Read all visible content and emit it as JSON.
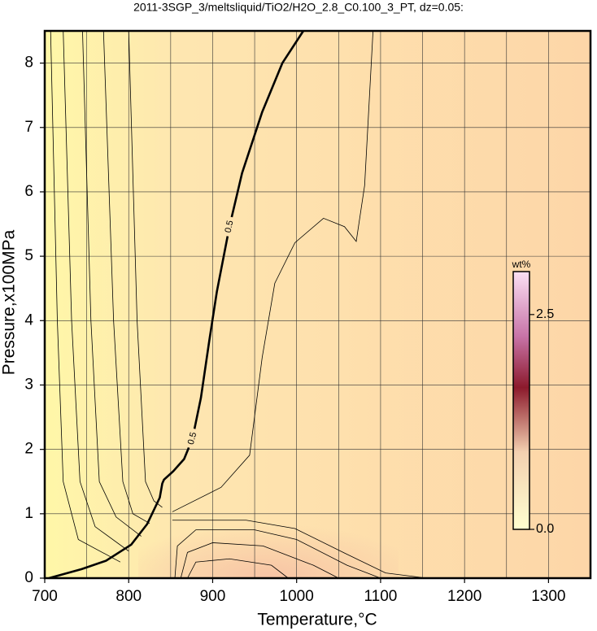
{
  "chart_data": {
    "type": "contour",
    "title": "2011-3SGP_3/meltsliquid/TiO2/H2O_2.8_C0.100_3_PT, dz=0.05:",
    "x_label": "Temperature,°C",
    "y_label": "Pressure,x100MPa",
    "xlim": [
      700,
      1350
    ],
    "ylim": [
      0,
      8.5
    ],
    "xticks": [
      700,
      800,
      900,
      1000,
      1100,
      1200,
      1300
    ],
    "yticks": [
      0,
      1,
      2,
      3,
      4,
      5,
      6,
      7,
      8
    ],
    "xgrid": [
      750,
      800,
      850,
      900,
      950,
      1000,
      1050,
      1100,
      1150,
      1200,
      1250,
      1300
    ],
    "grid": true,
    "line_color": "#000000",
    "series": [
      {
        "level": 0.5,
        "x": [
          705,
          744,
          773,
          803,
          822,
          837,
          840,
          842,
          853,
          866,
          876,
          886,
          896,
          905,
          920,
          935,
          959,
          983,
          1008
        ],
        "y": [
          0,
          0.14,
          0.27,
          0.52,
          0.84,
          1.25,
          1.47,
          1.53,
          1.66,
          1.85,
          2.17,
          2.8,
          3.69,
          4.45,
          5.46,
          6.29,
          7.24,
          8.0,
          8.5
        ]
      },
      {
        "x": [
          852,
          910,
          944,
          959,
          974,
          998,
          1032,
          1057,
          1071,
          1081,
          1091
        ],
        "y": [
          1.03,
          1.41,
          1.91,
          3.43,
          4.58,
          5.21,
          5.59,
          5.46,
          5.23,
          6.1,
          8.5
        ]
      },
      {
        "x": [
          852,
          940,
          998,
          1057,
          1106,
          1155
        ],
        "y": [
          0.9,
          0.9,
          0.77,
          0.39,
          0.08,
          0
        ]
      },
      {
        "x": [
          707,
          715,
          722,
          740,
          790
        ],
        "y": [
          8.5,
          4,
          1.5,
          0.6,
          0.25
        ]
      },
      {
        "x": [
          722,
          732,
          742,
          760,
          800
        ],
        "y": [
          8.5,
          4,
          1.5,
          0.8,
          0.42
        ]
      },
      {
        "x": [
          745,
          755,
          765,
          785,
          815
        ],
        "y": [
          8.5,
          4,
          1.5,
          0.95,
          0.65
        ]
      },
      {
        "x": [
          770,
          782,
          793,
          805,
          825
        ],
        "y": [
          8.5,
          4,
          1.5,
          1.0,
          0.85
        ]
      },
      {
        "x": [
          800,
          810,
          820,
          830,
          840
        ],
        "y": [
          8.5,
          4,
          1.5,
          1.2,
          1.1
        ]
      },
      {
        "x": [
          855,
          858,
          880,
          950,
          1000,
          1060,
          1100
        ],
        "y": [
          0,
          0.5,
          0.75,
          0.75,
          0.6,
          0.2,
          0
        ]
      },
      {
        "x": [
          862,
          870,
          900,
          960,
          1020,
          1050
        ],
        "y": [
          0,
          0.4,
          0.55,
          0.5,
          0.2,
          0
        ]
      },
      {
        "x": [
          870,
          880,
          920,
          970,
          990
        ],
        "y": [
          0,
          0.25,
          0.3,
          0.2,
          0
        ]
      }
    ],
    "colorbar": {
      "label": "wt%",
      "lim": [
        0,
        3
      ],
      "ticks": [
        {
          "value": 0,
          "label": "0.0"
        },
        {
          "value": 2.5,
          "label": "2.5"
        }
      ]
    }
  }
}
